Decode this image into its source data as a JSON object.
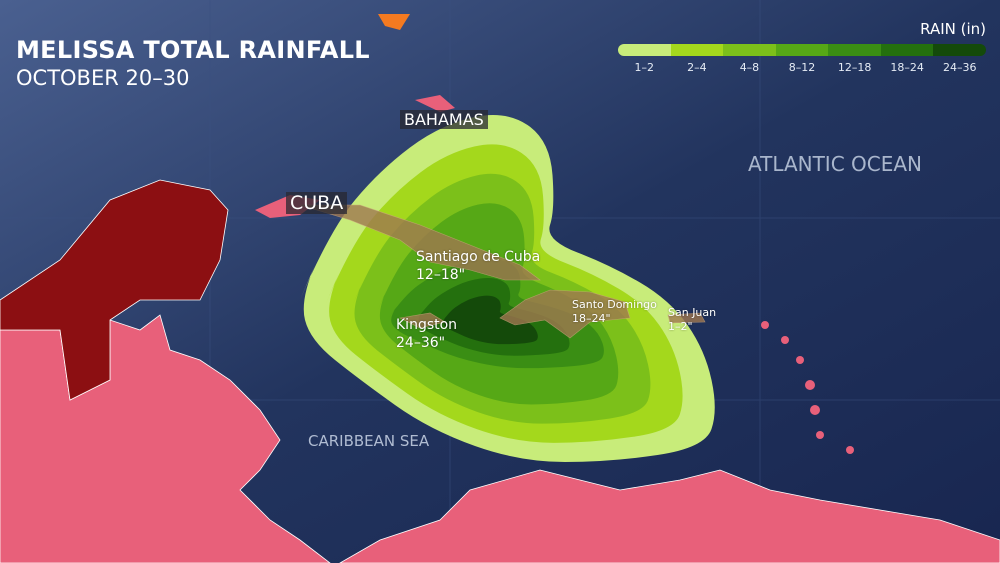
{
  "title": "MELISSA TOTAL RAINFALL",
  "subtitle": "OCTOBER 20–30",
  "legend": {
    "title": "RAIN (in)",
    "bins": [
      {
        "label": "1–2",
        "color": "#c8ec7a"
      },
      {
        "label": "2–4",
        "color": "#a4d81c"
      },
      {
        "label": "4–8",
        "color": "#7cc01a"
      },
      {
        "label": "8–12",
        "color": "#56a816"
      },
      {
        "label": "12–18",
        "color": "#3a8e14"
      },
      {
        "label": "18–24",
        "color": "#24700e"
      },
      {
        "label": "24–36",
        "color": "#144a0a"
      }
    ]
  },
  "labels": {
    "bahamas": "BAHAMAS",
    "cuba": "CUBA",
    "atlantic": "ATLANTIC OCEAN",
    "caribbean": "CARIBBEAN SEA"
  },
  "cities": [
    {
      "name": "Santiago de Cuba",
      "rain": "12–18\""
    },
    {
      "name": "Kingston",
      "rain": "24–36\""
    },
    {
      "name": "Santo Domingo",
      "rain": "18–24\""
    },
    {
      "name": "San Juan",
      "rain": "1–2\""
    }
  ],
  "colors": {
    "ocean": "#1d2c52",
    "land": "#e8607a",
    "mexico": "#8c0f12",
    "islands": "#a07850"
  }
}
